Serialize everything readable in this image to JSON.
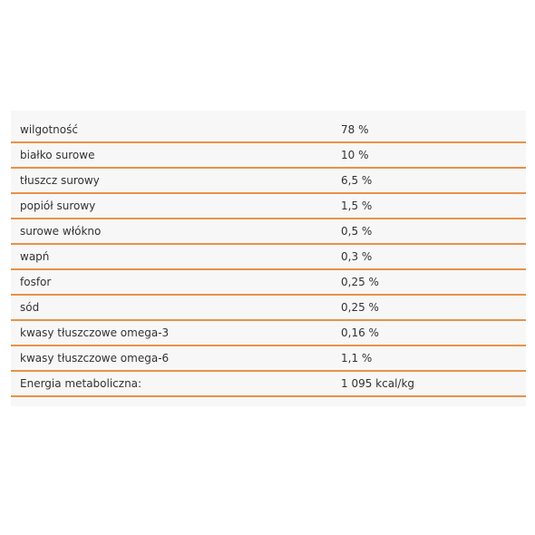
{
  "accent_color": "#e8914a",
  "rows": [
    {
      "label": "wilgotność",
      "value": "78 %"
    },
    {
      "label": "białko surowe",
      "value": "10 %"
    },
    {
      "label": "tłuszcz surowy",
      "value": "6,5 %"
    },
    {
      "label": "popiół surowy",
      "value": "1,5 %"
    },
    {
      "label": "surowe włókno",
      "value": "0,5 %"
    },
    {
      "label": "wapń",
      "value": "0,3 %"
    },
    {
      "label": "fosfor",
      "value": "0,25 %"
    },
    {
      "label": "sód",
      "value": "0,25 %"
    },
    {
      "label": "kwasy tłuszczowe omega-3",
      "value": "0,16 %"
    },
    {
      "label": "kwasy tłuszczowe omega-6",
      "value": "1,1 %"
    },
    {
      "label": "Energia metaboliczna:",
      "value": "1 095 kcal/kg"
    }
  ]
}
